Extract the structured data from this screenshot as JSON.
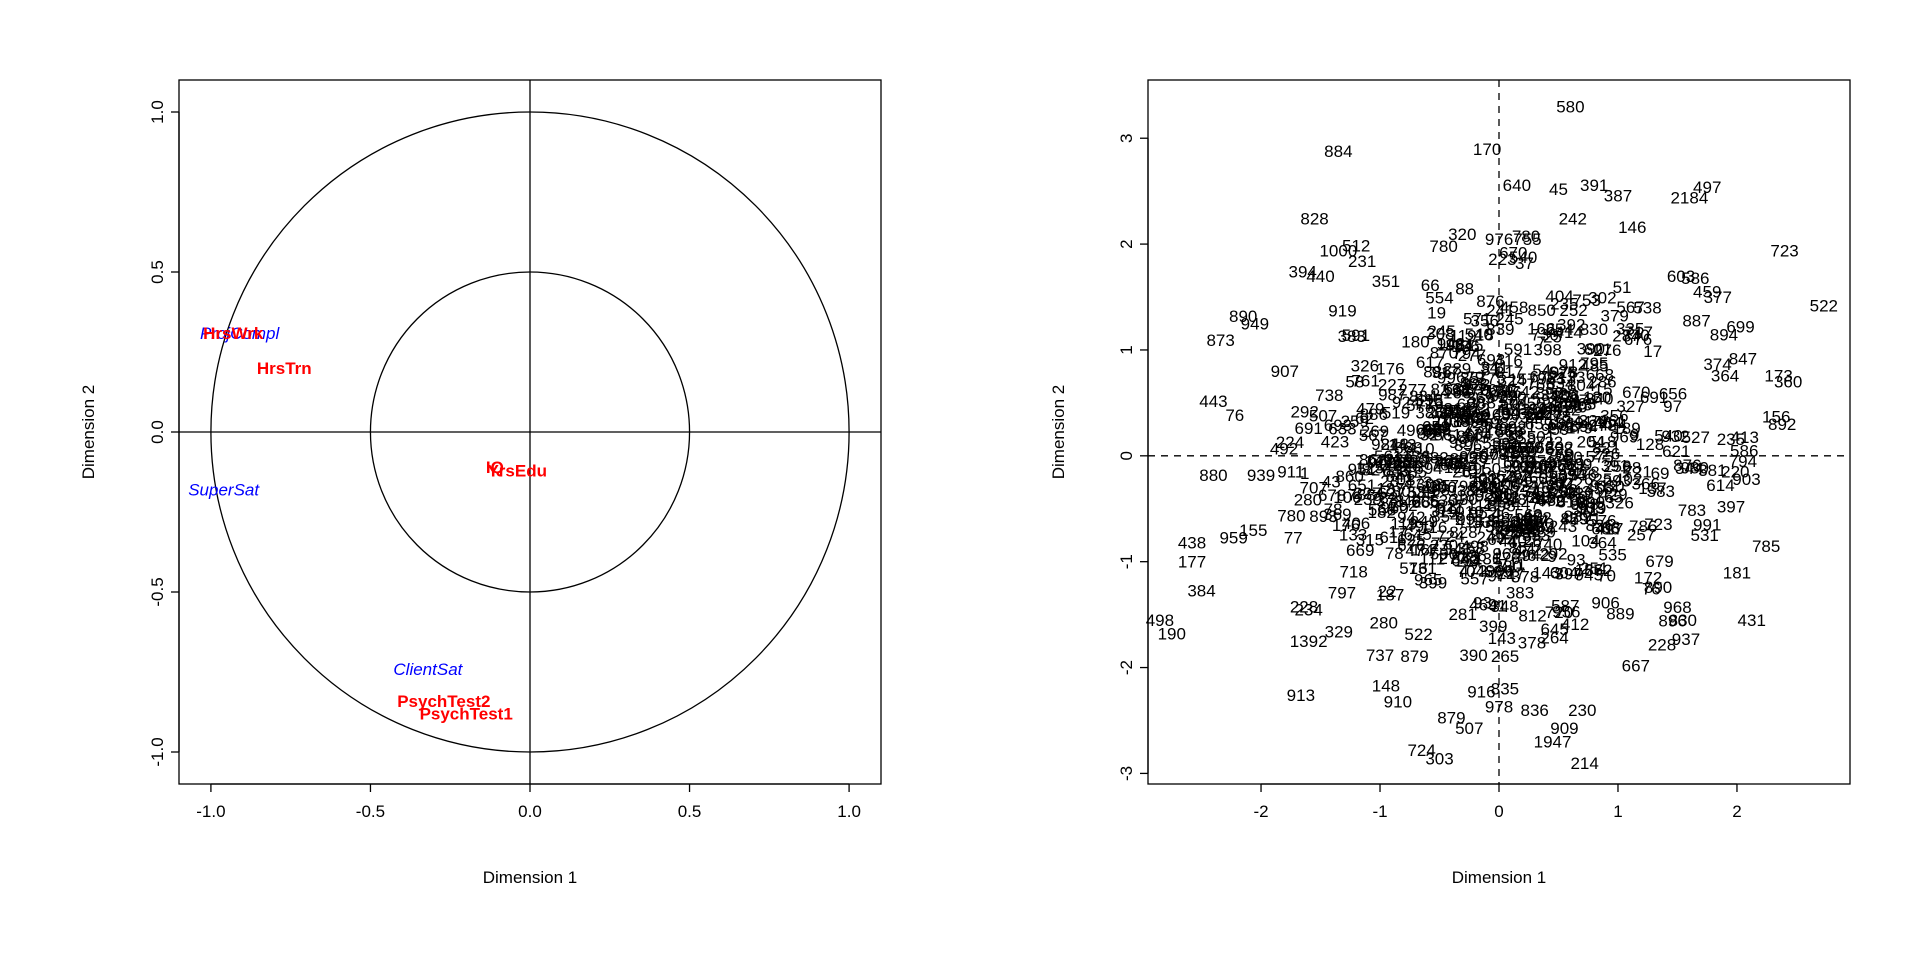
{
  "chart_data": [
    {
      "type": "scatter",
      "subtype": "correlation-circle",
      "xlabel": "Dimension  1",
      "ylabel": "Dimension  2",
      "xlim": [
        -1.1,
        1.1
      ],
      "ylim": [
        -1.1,
        1.1
      ],
      "x_ticks": [
        "-1.0",
        "-0.5",
        "0.0",
        "0.5",
        "1.0"
      ],
      "y_ticks": [
        "-1.0",
        "-0.5",
        "0.0",
        "0.5",
        "1.0"
      ],
      "circles": [
        1.0,
        0.5
      ],
      "variables": [
        {
          "label": "ProjCompl",
          "x": -0.91,
          "y": 0.31,
          "group": "supplementary",
          "color": "#0000ff"
        },
        {
          "label": "HrsWrk",
          "x": -0.93,
          "y": 0.31,
          "group": "active",
          "color": "#ff0000"
        },
        {
          "label": "HrsTrn",
          "x": -0.77,
          "y": 0.2,
          "group": "active",
          "color": "#ff0000"
        },
        {
          "label": "SuperSat",
          "x": -0.96,
          "y": -0.18,
          "group": "supplementary",
          "color": "#0000ff"
        },
        {
          "label": "IQ",
          "x": -0.11,
          "y": -0.11,
          "group": "active",
          "color": "#ff0000"
        },
        {
          "label": "YrsEdu",
          "x": -0.04,
          "y": -0.12,
          "group": "active",
          "color": "#ff0000"
        },
        {
          "label": "ClientSat",
          "x": -0.32,
          "y": -0.74,
          "group": "supplementary",
          "color": "#0000ff"
        },
        {
          "label": "PsychTest2",
          "x": -0.27,
          "y": -0.84,
          "group": "active",
          "color": "#ff0000"
        },
        {
          "label": "PsychTest1",
          "x": -0.2,
          "y": -0.88,
          "group": "active",
          "color": "#ff0000"
        }
      ]
    },
    {
      "type": "scatter",
      "subtype": "individuals-map",
      "xlabel": "Dimension  1",
      "ylabel": "Dimension  2",
      "xlim": [
        -2.95,
        2.95
      ],
      "ylim": [
        -3.1,
        3.55
      ],
      "x_ticks": [
        "-2",
        "-1",
        "0",
        "1",
        "2"
      ],
      "y_ticks": [
        "-3",
        "-2",
        "-1",
        "0",
        "1",
        "2",
        "3"
      ],
      "reference_lines": "dashed at x=0 and y=0",
      "labeled_points": [
        {
          "label": "580",
          "x": 0.6,
          "y": 3.3
        },
        {
          "label": "884",
          "x": -1.35,
          "y": 2.88
        },
        {
          "label": "170",
          "x": -0.1,
          "y": 2.9
        },
        {
          "label": "640",
          "x": 0.15,
          "y": 2.56
        },
        {
          "label": "45",
          "x": 0.5,
          "y": 2.52
        },
        {
          "label": "391",
          "x": 0.8,
          "y": 2.56
        },
        {
          "label": "387",
          "x": 1.0,
          "y": 2.46
        },
        {
          "label": "497",
          "x": 1.75,
          "y": 2.54
        },
        {
          "label": "2184",
          "x": 1.6,
          "y": 2.44
        },
        {
          "label": "242",
          "x": 0.62,
          "y": 2.24
        },
        {
          "label": "146",
          "x": 1.12,
          "y": 2.16
        },
        {
          "label": "828",
          "x": -1.55,
          "y": 2.24
        },
        {
          "label": "723",
          "x": 2.4,
          "y": 1.94
        },
        {
          "label": "1000",
          "x": -1.35,
          "y": 1.94
        },
        {
          "label": "976755",
          "x": 0.12,
          "y": 2.05
        },
        {
          "label": "670",
          "x": 0.12,
          "y": 1.92
        },
        {
          "label": "394",
          "x": -1.65,
          "y": 1.74
        },
        {
          "label": "440",
          "x": -1.5,
          "y": 1.7
        },
        {
          "label": "231",
          "x": -1.15,
          "y": 1.84
        },
        {
          "label": "351",
          "x": -0.95,
          "y": 1.65
        },
        {
          "label": "603",
          "x": 1.53,
          "y": 1.7
        },
        {
          "label": "586",
          "x": 1.65,
          "y": 1.68
        },
        {
          "label": "459",
          "x": 1.75,
          "y": 1.55
        },
        {
          "label": "887",
          "x": 1.66,
          "y": 1.28
        },
        {
          "label": "699",
          "x": 2.03,
          "y": 1.22
        },
        {
          "label": "522",
          "x": 2.73,
          "y": 1.42
        },
        {
          "label": "890",
          "x": -2.15,
          "y": 1.32
        },
        {
          "label": "847",
          "x": 2.05,
          "y": 0.92
        },
        {
          "label": "364",
          "x": 1.9,
          "y": 0.76
        },
        {
          "label": "173",
          "x": 2.35,
          "y": 0.76
        },
        {
          "label": "360",
          "x": 2.43,
          "y": 0.7
        },
        {
          "label": "907",
          "x": -1.8,
          "y": 0.8
        },
        {
          "label": "443",
          "x": -2.4,
          "y": 0.52
        },
        {
          "label": "156",
          "x": 2.33,
          "y": 0.37
        },
        {
          "label": "892",
          "x": 2.38,
          "y": 0.3
        },
        {
          "label": "794",
          "x": 2.05,
          "y": -0.05
        },
        {
          "label": "903",
          "x": 2.08,
          "y": -0.22
        },
        {
          "label": "880",
          "x": -2.4,
          "y": -0.18
        },
        {
          "label": "939",
          "x": -2.0,
          "y": -0.18
        },
        {
          "label": "911",
          "x": -1.75,
          "y": -0.15
        },
        {
          "label": "397",
          "x": 1.95,
          "y": -0.48
        },
        {
          "label": "991",
          "x": 1.75,
          "y": -0.65
        },
        {
          "label": "438",
          "x": -2.58,
          "y": -0.82
        },
        {
          "label": "959",
          "x": -2.23,
          "y": -0.77
        },
        {
          "label": "177",
          "x": -2.58,
          "y": -1.0
        },
        {
          "label": "181",
          "x": 2.0,
          "y": -1.1
        },
        {
          "label": "384",
          "x": -2.5,
          "y": -1.27
        },
        {
          "label": "968",
          "x": 1.5,
          "y": -1.43
        },
        {
          "label": "234",
          "x": -1.6,
          "y": -1.45
        },
        {
          "label": "498",
          "x": -2.85,
          "y": -1.55
        },
        {
          "label": "190",
          "x": -2.75,
          "y": -1.68
        },
        {
          "label": "1392",
          "x": -1.6,
          "y": -1.75
        },
        {
          "label": "228",
          "x": 1.37,
          "y": -1.78
        },
        {
          "label": "737",
          "x": -1.0,
          "y": -1.88
        },
        {
          "label": "667",
          "x": 1.15,
          "y": -1.98
        },
        {
          "label": "148",
          "x": -0.95,
          "y": -2.17
        },
        {
          "label": "910",
          "x": -0.85,
          "y": -2.32
        },
        {
          "label": "835",
          "x": 0.05,
          "y": -2.2
        },
        {
          "label": "978",
          "x": 0.0,
          "y": -2.37
        },
        {
          "label": "836",
          "x": 0.3,
          "y": -2.4
        },
        {
          "label": "230",
          "x": 0.7,
          "y": -2.4
        },
        {
          "label": "879",
          "x": -0.4,
          "y": -2.47
        },
        {
          "label": "507",
          "x": -0.25,
          "y": -2.57
        },
        {
          "label": "909",
          "x": 0.55,
          "y": -2.57
        },
        {
          "label": "1947",
          "x": 0.45,
          "y": -2.7
        },
        {
          "label": "724",
          "x": -0.65,
          "y": -2.78
        },
        {
          "label": "303",
          "x": -0.5,
          "y": -2.86
        },
        {
          "label": "214",
          "x": 0.72,
          "y": -2.9
        }
      ]
    }
  ]
}
